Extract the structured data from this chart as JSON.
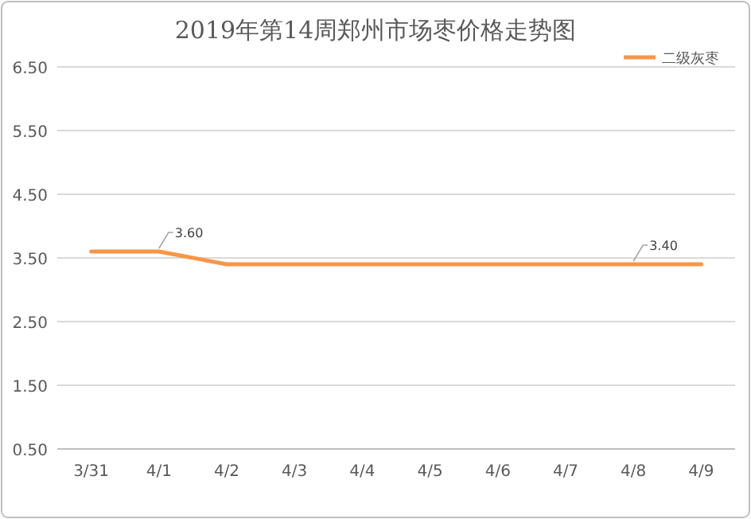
{
  "chart_data": {
    "type": "line",
    "title": "2019年第14周郑州市场枣价格走势图",
    "categories": [
      "3/31",
      "4/1",
      "4/2",
      "4/3",
      "4/4",
      "4/5",
      "4/6",
      "4/7",
      "4/8",
      "4/9"
    ],
    "series": [
      {
        "name": "二级灰枣",
        "color": "#f79646",
        "values": [
          3.6,
          3.6,
          3.4,
          3.4,
          3.4,
          3.4,
          3.4,
          3.4,
          3.4,
          3.4
        ],
        "value_labels": [
          null,
          "3.60",
          null,
          null,
          null,
          null,
          null,
          null,
          "3.40",
          null
        ]
      }
    ],
    "ylim": [
      0.5,
      6.5
    ],
    "yticks": [
      {
        "value": 0.5,
        "label": "0.50"
      },
      {
        "value": 1.5,
        "label": "1.50"
      },
      {
        "value": 2.5,
        "label": "2.50"
      },
      {
        "value": 3.5,
        "label": "3.50"
      },
      {
        "value": 4.5,
        "label": "4.50"
      },
      {
        "value": 5.5,
        "label": "5.50"
      },
      {
        "value": 6.5,
        "label": "6.50"
      }
    ],
    "grid": "y",
    "legend": "top right",
    "marker": "none",
    "line_style": "solid"
  }
}
